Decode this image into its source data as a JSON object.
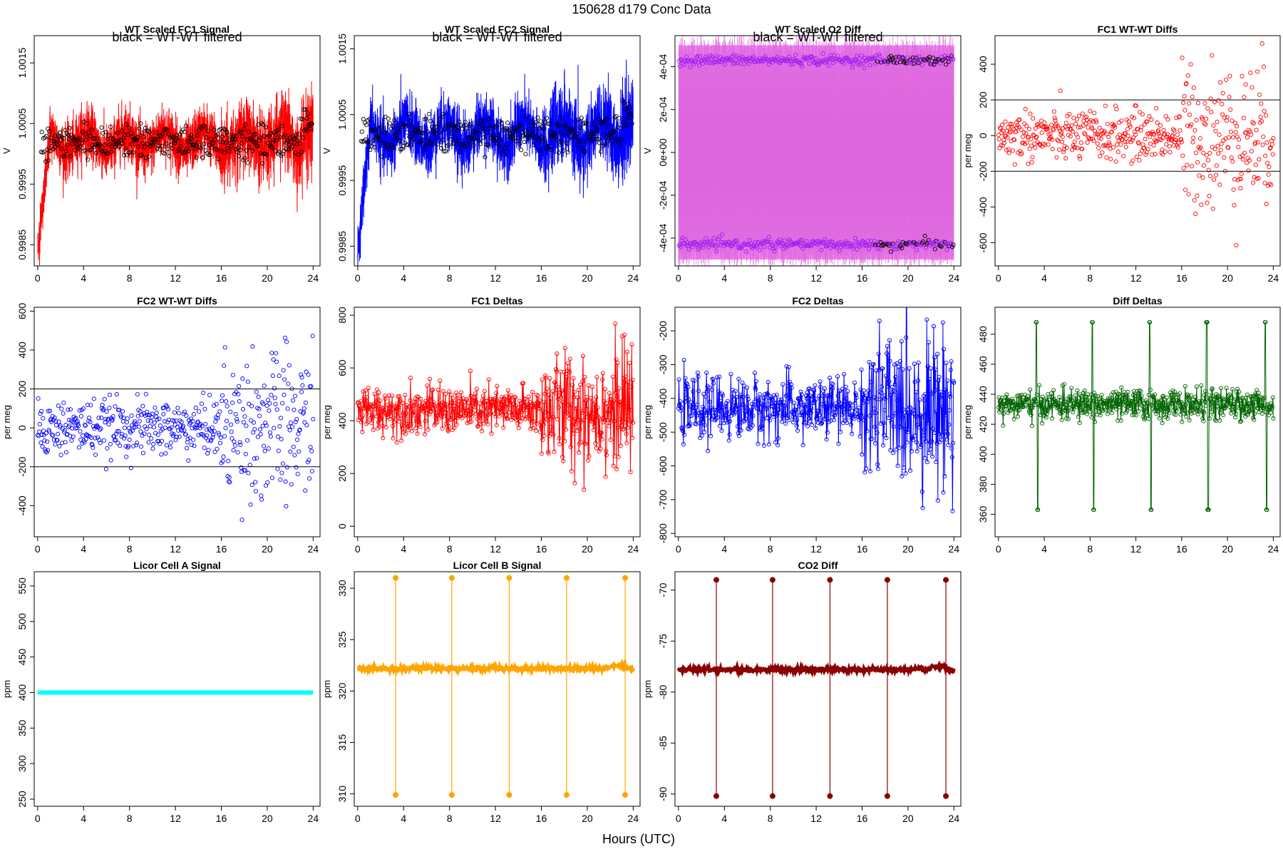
{
  "figure": {
    "title": "150628   d179   Conc Data",
    "xlabel": "Hours (UTC)"
  },
  "chart_data": [
    {
      "id": "p1",
      "type": "line",
      "title": "WT Scaled FC1 Signal",
      "annotation": "black = WT-WT filtered",
      "ylabel": "V",
      "color": "#ff0000",
      "overlay_color": "#000000",
      "xlim": [
        -0.3,
        24.6
      ],
      "ylim": [
        0.99815,
        1.00195
      ],
      "xticks": [
        0,
        4,
        8,
        12,
        16,
        20,
        24
      ],
      "yticks": [
        0.9985,
        0.9995,
        1.0005,
        1.0015
      ],
      "ytick_labels": [
        "0.9985",
        "0.9995",
        "1.0005",
        "1.0015"
      ],
      "ref_lines": [],
      "series_note": "dense band ~0.9998-1.0006 from 1 h to 24 h, rise from 0.9983 in first hour"
    },
    {
      "id": "p2",
      "type": "line",
      "title": "WT Scaled FC2 Signal",
      "annotation": "black = WT-WT filtered",
      "ylabel": "V",
      "color": "#0000ff",
      "overlay_color": "#000000",
      "xlim": [
        -0.3,
        24.6
      ],
      "ylim": [
        0.9982,
        1.0017
      ],
      "xticks": [
        0,
        4,
        8,
        12,
        16,
        20,
        24
      ],
      "yticks": [
        0.9985,
        0.9995,
        1.0005,
        1.0015
      ],
      "ytick_labels": [
        "0.9985",
        "0.9995",
        "1.0005",
        "1.0015"
      ],
      "ref_lines": []
    },
    {
      "id": "p3",
      "type": "scatter",
      "title": "WT Scaled O2 Diff",
      "annotation": "black = WT-WT filtered",
      "ylabel": "V",
      "color": "#ee82ee",
      "overlay_color": "#a020f0",
      "xlim": [
        -0.3,
        24.6
      ],
      "ylim": [
        -0.00053,
        0.000545
      ],
      "xticks": [
        0,
        4,
        8,
        12,
        16,
        20,
        24
      ],
      "yticks": [
        -0.0004,
        -0.0002,
        0,
        0.0002,
        0.0004
      ],
      "ytick_labels": [
        "-4e-04",
        "-2e-04",
        "0e+00",
        "2e-04",
        "4e-04"
      ],
      "ref_lines": [],
      "upper_cluster": 0.00043,
      "lower_cluster": -0.00043
    },
    {
      "id": "p4",
      "type": "scatter",
      "title": "FC1 WT-WT Diffs",
      "ylabel": "per meg",
      "color": "#ff0000",
      "xlim": [
        -0.3,
        24.6
      ],
      "ylim": [
        -730,
        560
      ],
      "xticks": [
        0,
        4,
        8,
        12,
        16,
        20,
        24
      ],
      "yticks": [
        -600,
        -400,
        -200,
        0,
        200,
        400
      ],
      "ytick_labels": [
        "-600",
        "-400",
        "-200",
        "0",
        "200",
        "400"
      ],
      "ref_lines": [
        200,
        -200
      ]
    },
    {
      "id": "p5",
      "type": "scatter",
      "title": "FC2 WT-WT Diffs",
      "ylabel": "per meg",
      "color": "#0000ff",
      "xlim": [
        -0.3,
        24.6
      ],
      "ylim": [
        -560,
        620
      ],
      "xticks": [
        0,
        4,
        8,
        12,
        16,
        20,
        24
      ],
      "yticks": [
        -400,
        -200,
        0,
        200,
        400,
        600
      ],
      "ytick_labels": [
        "-400",
        "-200",
        "0",
        "200",
        "400",
        "600"
      ],
      "ref_lines": [
        200,
        -200
      ]
    },
    {
      "id": "p6",
      "type": "line",
      "title": "FC1 Deltas",
      "ylabel": "per meg",
      "color": "#ff0000",
      "xlim": [
        -0.3,
        24.6
      ],
      "ylim": [
        -40,
        830
      ],
      "xticks": [
        0,
        4,
        8,
        12,
        16,
        20,
        24
      ],
      "yticks": [
        0,
        200,
        400,
        600,
        800
      ],
      "ytick_labels": [
        "0",
        "200",
        "400",
        "600",
        "800"
      ],
      "ref_lines": [],
      "center": 440
    },
    {
      "id": "p7",
      "type": "line",
      "title": "FC2 Deltas",
      "ylabel": "per meg",
      "color": "#0000ff",
      "xlim": [
        -0.3,
        24.6
      ],
      "ylim": [
        -810,
        -130
      ],
      "xticks": [
        0,
        4,
        8,
        12,
        16,
        20,
        24
      ],
      "yticks": [
        -800,
        -700,
        -600,
        -500,
        -400,
        -300,
        -200
      ],
      "ytick_labels": [
        "-800",
        "-700",
        "-600",
        "-500",
        "-400",
        "-300",
        "-200"
      ],
      "ref_lines": [],
      "center": -430
    },
    {
      "id": "p8",
      "type": "line",
      "title": "Diff Deltas",
      "ylabel": "per meg",
      "color": "#006400",
      "xlim": [
        -0.3,
        24.6
      ],
      "ylim": [
        345,
        498
      ],
      "xticks": [
        0,
        4,
        8,
        12,
        16,
        20,
        24
      ],
      "yticks": [
        360,
        380,
        400,
        420,
        440,
        460,
        480
      ],
      "ytick_labels": [
        "360",
        "380",
        "400",
        "420",
        "440",
        "460",
        "480"
      ],
      "ref_lines": [],
      "center": 433
    },
    {
      "id": "p9",
      "type": "line",
      "title": "Licor Cell A Signal",
      "ylabel": "ppm",
      "color": "#00ffff",
      "xlim": [
        -0.3,
        24.6
      ],
      "ylim": [
        240,
        570
      ],
      "xticks": [
        0,
        4,
        8,
        12,
        16,
        20,
        24
      ],
      "yticks": [
        250,
        300,
        350,
        400,
        450,
        500,
        550
      ],
      "ytick_labels": [
        "250",
        "300",
        "350",
        "400",
        "450",
        "500",
        "550"
      ],
      "ref_lines": [],
      "level": 400
    },
    {
      "id": "p10",
      "type": "line",
      "title": "Licor Cell B Signal",
      "ylabel": "ppm",
      "color": "#ffa500",
      "xlim": [
        -0.3,
        24.6
      ],
      "ylim": [
        308.8,
        331.6
      ],
      "xticks": [
        0,
        4,
        8,
        12,
        16,
        20,
        24
      ],
      "yticks": [
        310,
        315,
        320,
        325,
        330
      ],
      "ytick_labels": [
        "310",
        "315",
        "320",
        "325",
        "330"
      ],
      "ref_lines": [],
      "level": 322.2,
      "spike_high": 331,
      "spike_low": 309.9
    },
    {
      "id": "p11",
      "type": "line",
      "title": "CO2 Diff",
      "ylabel": "ppm",
      "color": "#8b0000",
      "xlim": [
        -0.3,
        24.6
      ],
      "ylim": [
        -91.2,
        -68.2
      ],
      "xticks": [
        0,
        4,
        8,
        12,
        16,
        20,
        24
      ],
      "yticks": [
        -90,
        -85,
        -80,
        -75,
        -70
      ],
      "ytick_labels": [
        "-90",
        "-85",
        "-80",
        "-75",
        "-70"
      ],
      "ref_lines": [],
      "level": -77.8,
      "spike_high": -69,
      "spike_low": -90.2
    }
  ]
}
